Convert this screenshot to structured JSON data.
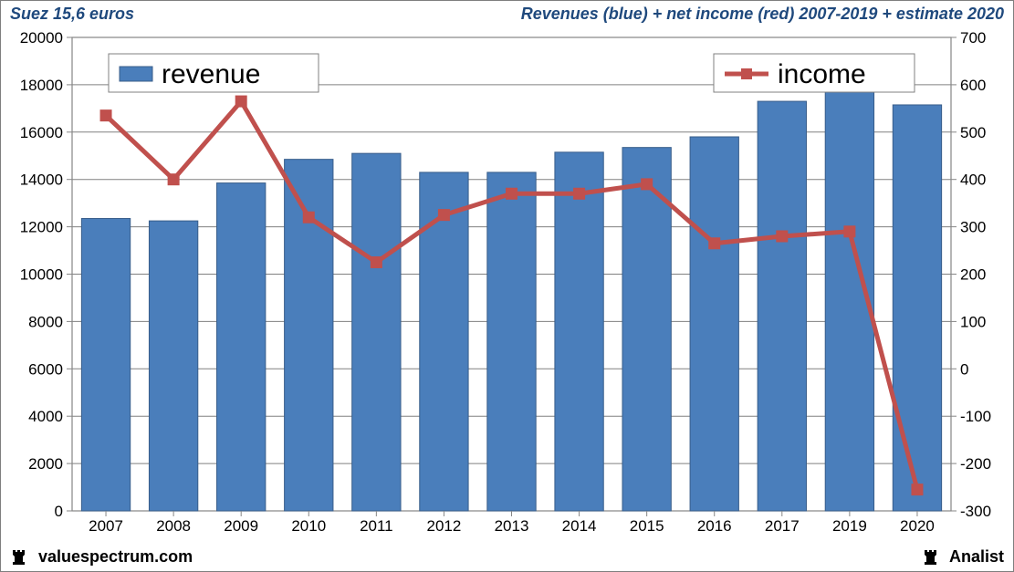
{
  "header": {
    "left": "Suez 15,6 euros",
    "right": "Revenues (blue) + net income (red) 2007-2019 + estimate 2020",
    "color": "#1f497d",
    "fontsize": 18
  },
  "footer": {
    "left": "valuespectrum.com",
    "right": "Analist",
    "color": "#000000",
    "fontsize": 18
  },
  "chart": {
    "type": "bar+line_dual_axis",
    "categories": [
      "2007",
      "2008",
      "2009",
      "2010",
      "2011",
      "2012",
      "2013",
      "2014",
      "2015",
      "2016",
      "2017",
      "2019",
      "2020"
    ],
    "bars": {
      "label": "revenue",
      "values": [
        12350,
        12250,
        13850,
        14850,
        15100,
        14300,
        14300,
        15150,
        15350,
        15800,
        17300,
        17850,
        17150
      ],
      "color": "#4a7ebb",
      "border_color": "#385d8a",
      "bar_width": 0.72
    },
    "line": {
      "label": "income",
      "values": [
        535,
        400,
        565,
        320,
        225,
        325,
        370,
        370,
        390,
        265,
        280,
        290,
        -255
      ],
      "color": "#c0504d",
      "marker": "square",
      "marker_size": 12,
      "line_width": 5
    },
    "y_left": {
      "min": 0,
      "max": 20000,
      "step": 2000,
      "color": "#000000"
    },
    "y_right": {
      "min": -300,
      "max": 700,
      "step": 100,
      "color": "#000000"
    },
    "grid_color": "#808080",
    "plot_border_color": "#868686",
    "background_color": "#ffffff",
    "tick_fontsize": 17,
    "legend_fontsize": 30,
    "legend_box_border": "#808080"
  }
}
